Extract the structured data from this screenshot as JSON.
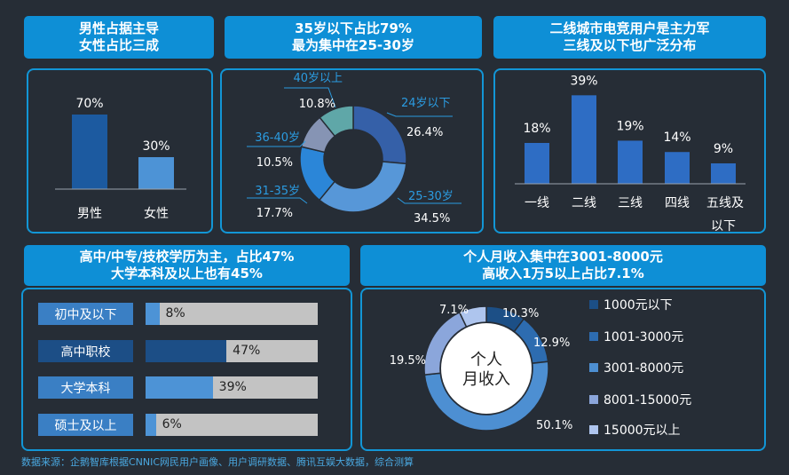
{
  "headers": {
    "gender": [
      "男性占据主导",
      "女性占比三成"
    ],
    "age": [
      "35岁以下占比79%",
      "最为集中在25-30岁"
    ],
    "city": [
      "二线城市电竞用户是主力军",
      "三线及以下也广泛分布"
    ],
    "edu": [
      "高中/中专/技校学历为主，占比47%",
      "大学本科及以上也有45%"
    ],
    "income": [
      "个人月收入集中在3001-8000元",
      "高收入1万5以上占比7.1%"
    ]
  },
  "footer": "数据来源：企鹅智库根据CNNIC网民用户画像、用户调研数据、腾讯互娱大数据，综合测算",
  "income_center": [
    "个人",
    "月收入"
  ],
  "colors": {
    "header_bg": "#0e8fd6",
    "panel_border": "#1296d6",
    "background": "#262d36"
  },
  "chart_data": [
    {
      "type": "bar",
      "id": "gender",
      "categories": [
        "男性",
        "女性"
      ],
      "values": [
        70,
        30
      ],
      "labels": [
        "70%",
        "30%"
      ],
      "colors": [
        "#1c5aa0",
        "#4d93d6"
      ],
      "ylim": [
        0,
        100
      ]
    },
    {
      "type": "pie",
      "id": "age",
      "donut": true,
      "slices": [
        {
          "label": "24岁以下",
          "value": 26.4,
          "pct": "26.4%",
          "color": "#3560a8"
        },
        {
          "label": "25-30岁",
          "value": 34.5,
          "pct": "34.5%",
          "color": "#5797d8"
        },
        {
          "label": "31-35岁",
          "value": 17.7,
          "pct": "17.7%",
          "color": "#2b86d8"
        },
        {
          "label": "36-40岁",
          "value": 10.5,
          "pct": "10.5%",
          "color": "#8694b4"
        },
        {
          "label": "40岁以上",
          "value": 10.8,
          "pct": "10.8%",
          "color": "#5fa7a8"
        }
      ]
    },
    {
      "type": "bar",
      "id": "city",
      "categories": [
        "一线",
        "二线",
        "三线",
        "四线",
        "五线及以下"
      ],
      "values": [
        18,
        39,
        19,
        14,
        9
      ],
      "labels": [
        "18%",
        "39%",
        "19%",
        "14%",
        "9%"
      ],
      "color": "#2e6dc4",
      "ylim": [
        0,
        45
      ]
    },
    {
      "type": "bar",
      "id": "education",
      "orientation": "horizontal",
      "categories": [
        "初中及以下",
        "高中职校",
        "大学本科",
        "硕士及以上"
      ],
      "values": [
        8,
        47,
        39,
        6
      ],
      "labels": [
        "8%",
        "47%",
        "39%",
        "6%"
      ],
      "colors": [
        "#4d93d6",
        "#1c4e86",
        "#4d93d6",
        "#4d93d6"
      ],
      "track_color": "#c3c3c3",
      "xlim": [
        0,
        100
      ]
    },
    {
      "type": "pie",
      "id": "income",
      "donut": true,
      "slices": [
        {
          "label": "1000元以下",
          "value": 10.3,
          "pct": "10.3%",
          "color": "#1c4f86"
        },
        {
          "label": "1001-3000元",
          "value": 12.9,
          "pct": "12.9%",
          "color": "#2d6cb0"
        },
        {
          "label": "3001-8000元",
          "value": 50.1,
          "pct": "50.1%",
          "color": "#4d8fd2"
        },
        {
          "label": "8001-15000元",
          "value": 19.5,
          "pct": "19.5%",
          "color": "#8ba6db"
        },
        {
          "label": "15000元以上",
          "value": 7.1,
          "pct": "7.1%",
          "color": "#aec5ee"
        }
      ]
    }
  ]
}
